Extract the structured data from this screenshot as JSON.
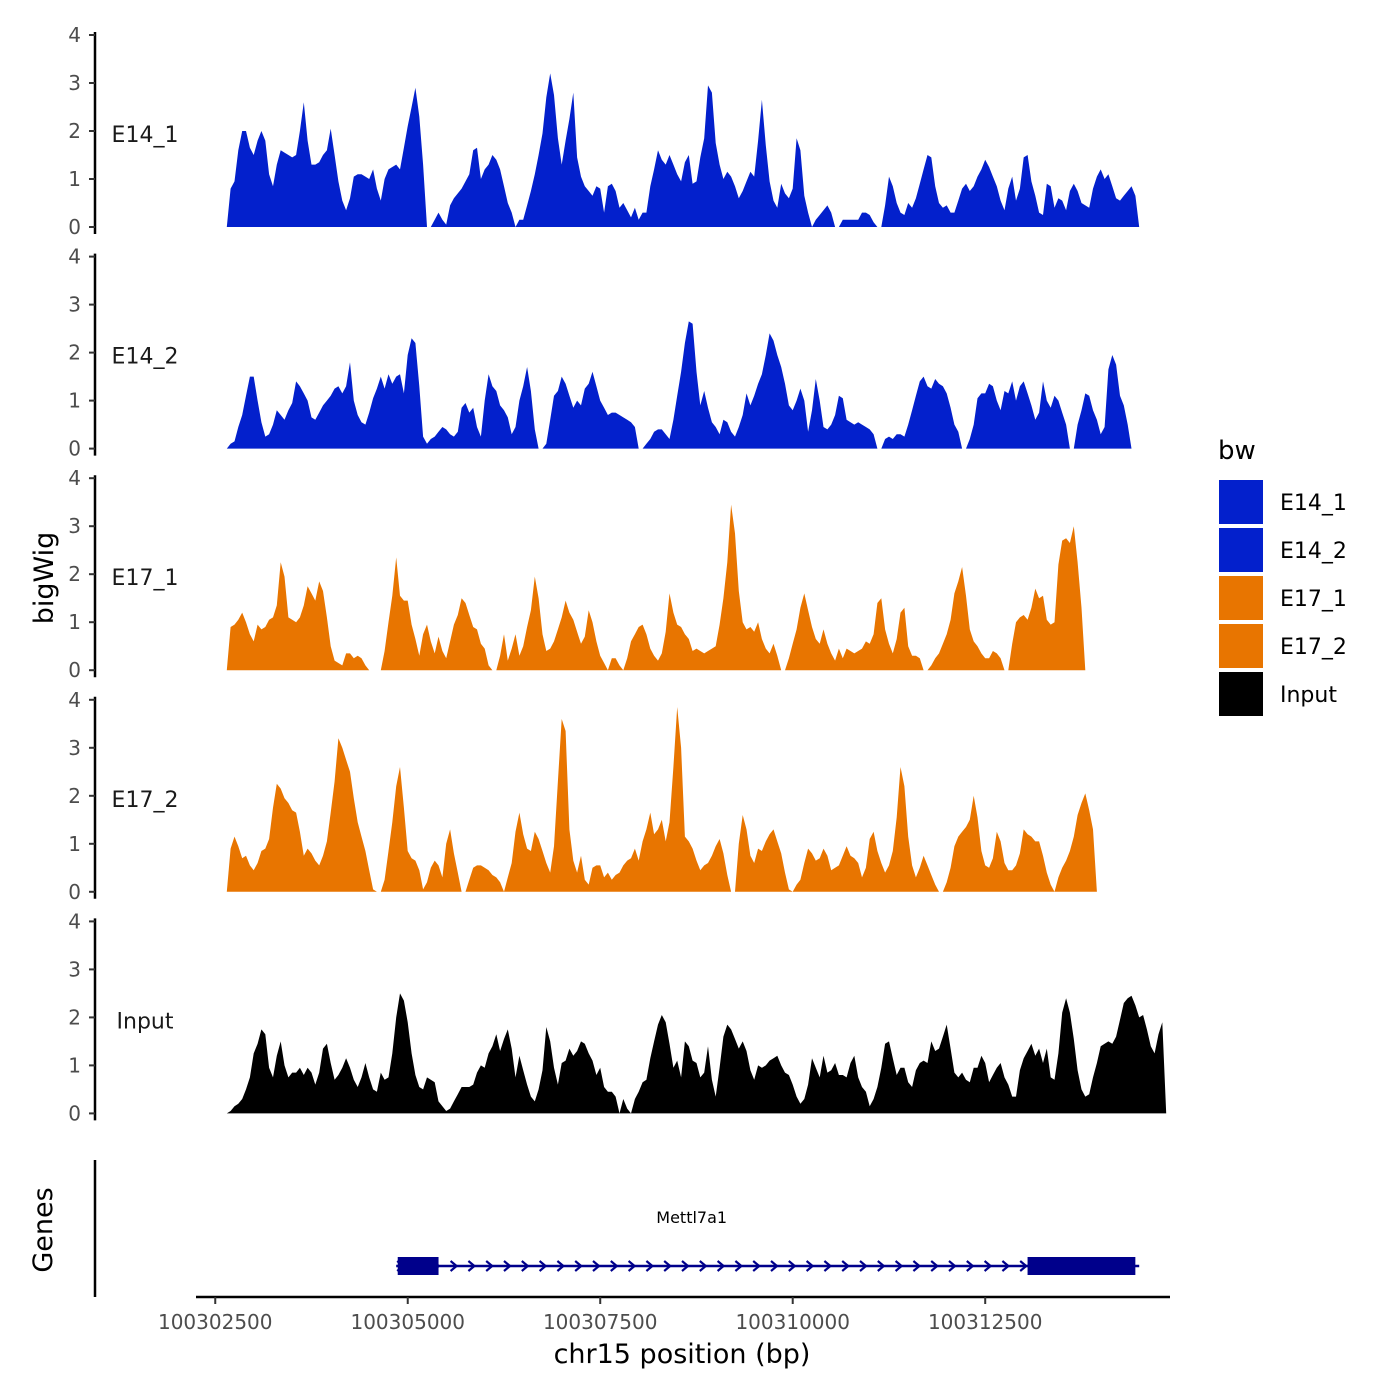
{
  "chart_data": {
    "type": "area",
    "ylabel": "bigWig",
    "xlabel": "chr15 position (bp)",
    "ylim": [
      0,
      4
    ],
    "y_ticks": [
      0,
      1,
      2,
      3,
      4
    ],
    "x_range": [
      100302250,
      100314900
    ],
    "x_ticks": [
      {
        "value": 100302500,
        "label": "100302500"
      },
      {
        "value": 100305000,
        "label": "100305000"
      },
      {
        "value": 100307500,
        "label": "100307500"
      },
      {
        "value": 100310000,
        "label": "100310000"
      },
      {
        "value": 100312500,
        "label": "100312500"
      }
    ],
    "data_start": 100302650,
    "data_step": 50,
    "legend": {
      "title": "bw",
      "position": "right"
    },
    "series": [
      {
        "name": "E14_1",
        "color": "#0320CC",
        "values": [
          0.0,
          0.8,
          0.95,
          1.6,
          2.0,
          2.0,
          1.65,
          1.5,
          1.8,
          2.0,
          1.8,
          1.1,
          0.85,
          1.3,
          1.6,
          1.55,
          1.5,
          1.45,
          1.5,
          2.0,
          2.6,
          1.8,
          1.3,
          1.3,
          1.35,
          1.5,
          1.6,
          2.05,
          1.5,
          0.95,
          0.55,
          0.35,
          0.6,
          1.05,
          1.1,
          1.1,
          1.05,
          1.0,
          1.2,
          0.8,
          0.55,
          1.0,
          1.2,
          1.25,
          1.3,
          1.2,
          1.65,
          2.1,
          2.5,
          2.9,
          2.3,
          1.3,
          0.0,
          0.0,
          0.15,
          0.3,
          0.15,
          0.05,
          0.45,
          0.6,
          0.7,
          0.8,
          0.95,
          1.1,
          1.6,
          1.65,
          1.0,
          1.2,
          1.3,
          1.5,
          1.4,
          1.2,
          0.85,
          0.5,
          0.3,
          0.0,
          0.15,
          0.15,
          0.45,
          0.75,
          1.1,
          1.5,
          1.95,
          2.7,
          3.2,
          2.75,
          1.85,
          1.3,
          1.8,
          2.25,
          2.8,
          1.45,
          1.05,
          0.85,
          0.75,
          0.65,
          0.85,
          0.8,
          0.3,
          0.85,
          0.9,
          0.75,
          0.4,
          0.5,
          0.35,
          0.2,
          0.4,
          0.15,
          0.3,
          0.3,
          0.85,
          1.2,
          1.6,
          1.4,
          1.3,
          1.5,
          1.3,
          1.1,
          0.95,
          1.35,
          1.5,
          0.9,
          0.95,
          1.45,
          1.85,
          2.95,
          2.8,
          1.75,
          1.3,
          1.0,
          1.15,
          1.05,
          0.85,
          0.6,
          0.75,
          0.95,
          1.15,
          1.05,
          1.8,
          2.65,
          1.7,
          0.95,
          0.55,
          0.4,
          0.9,
          0.7,
          0.6,
          0.8,
          1.85,
          1.6,
          0.65,
          0.3,
          0.0,
          0.15,
          0.25,
          0.35,
          0.45,
          0.3,
          0.0,
          0.0,
          0.15,
          0.15,
          0.15,
          0.15,
          0.15,
          0.3,
          0.3,
          0.25,
          0.1,
          0.0,
          0.0,
          0.45,
          1.05,
          0.85,
          0.5,
          0.3,
          0.25,
          0.5,
          0.4,
          0.6,
          0.9,
          1.2,
          1.5,
          1.45,
          0.85,
          0.5,
          0.4,
          0.45,
          0.3,
          0.3,
          0.55,
          0.8,
          0.9,
          0.75,
          0.85,
          1.05,
          1.2,
          1.4,
          1.25,
          1.05,
          0.85,
          0.55,
          0.35,
          0.8,
          1.05,
          0.55,
          0.8,
          1.45,
          1.5,
          0.95,
          0.65,
          0.3,
          0.25,
          0.9,
          0.85,
          0.4,
          0.6,
          0.55,
          0.35,
          0.75,
          0.9,
          0.75,
          0.5,
          0.45,
          0.4,
          0.8,
          1.05,
          1.2,
          1.0,
          1.1,
          0.85,
          0.6,
          0.55,
          0.65,
          0.75,
          0.85,
          0.65,
          0.0
        ]
      },
      {
        "name": "E14_2",
        "color": "#0320CC",
        "values": [
          0.0,
          0.1,
          0.15,
          0.45,
          0.7,
          1.1,
          1.5,
          1.5,
          1.0,
          0.55,
          0.25,
          0.3,
          0.5,
          0.8,
          0.7,
          0.6,
          0.8,
          0.95,
          1.4,
          1.3,
          1.15,
          1.0,
          0.65,
          0.6,
          0.75,
          0.9,
          1.0,
          1.1,
          1.25,
          1.3,
          1.15,
          1.3,
          1.8,
          1.0,
          0.7,
          0.55,
          0.5,
          0.75,
          1.05,
          1.25,
          1.5,
          1.25,
          1.55,
          1.35,
          1.5,
          1.55,
          1.15,
          1.95,
          2.3,
          2.2,
          1.3,
          0.25,
          0.1,
          0.2,
          0.25,
          0.35,
          0.45,
          0.4,
          0.3,
          0.25,
          0.35,
          0.85,
          0.95,
          0.75,
          0.85,
          0.45,
          0.25,
          1.0,
          1.55,
          1.3,
          1.2,
          0.9,
          0.8,
          0.65,
          0.3,
          0.45,
          1.0,
          1.3,
          1.7,
          1.2,
          0.4,
          0.0,
          0.0,
          0.1,
          0.6,
          1.1,
          1.2,
          1.5,
          1.35,
          1.1,
          0.85,
          1.0,
          0.9,
          1.25,
          1.35,
          1.6,
          1.3,
          1.0,
          0.85,
          0.7,
          0.75,
          0.75,
          0.7,
          0.65,
          0.6,
          0.55,
          0.45,
          0.0,
          0.0,
          0.1,
          0.2,
          0.35,
          0.4,
          0.4,
          0.3,
          0.2,
          0.6,
          1.1,
          1.6,
          2.2,
          2.65,
          2.6,
          1.6,
          0.9,
          1.2,
          0.85,
          0.55,
          0.45,
          0.3,
          0.6,
          0.55,
          0.35,
          0.25,
          0.45,
          0.7,
          1.15,
          0.9,
          1.1,
          1.35,
          1.55,
          1.95,
          2.4,
          2.25,
          1.95,
          1.7,
          1.35,
          0.9,
          0.8,
          1.0,
          1.25,
          1.0,
          0.35,
          0.8,
          1.45,
          1.0,
          0.45,
          0.4,
          0.5,
          0.7,
          1.1,
          1.05,
          0.6,
          0.55,
          0.5,
          0.55,
          0.5,
          0.45,
          0.4,
          0.3,
          0.0,
          0.0,
          0.2,
          0.25,
          0.2,
          0.3,
          0.3,
          0.25,
          0.5,
          0.8,
          1.1,
          1.4,
          1.5,
          1.3,
          1.25,
          1.45,
          1.35,
          1.3,
          1.15,
          0.85,
          0.5,
          0.35,
          0.0,
          0.0,
          0.2,
          0.5,
          1.05,
          1.15,
          1.15,
          1.35,
          1.3,
          1.0,
          0.8,
          1.2,
          1.15,
          1.4,
          1.0,
          1.3,
          1.4,
          1.15,
          0.9,
          0.6,
          0.75,
          1.4,
          1.0,
          0.85,
          1.1,
          1.0,
          0.75,
          0.5,
          0.0,
          0.0,
          0.5,
          0.8,
          1.15,
          1.1,
          0.8,
          0.6,
          0.3,
          0.45,
          1.65,
          1.95,
          1.75,
          1.1,
          0.9,
          0.5,
          0.0
        ]
      },
      {
        "name": "E17_1",
        "color": "#E87500",
        "values": [
          0.0,
          0.9,
          0.95,
          1.05,
          1.2,
          1.0,
          0.75,
          0.6,
          0.95,
          0.85,
          0.9,
          1.05,
          1.1,
          1.35,
          2.25,
          1.95,
          1.1,
          1.05,
          1.0,
          1.1,
          1.35,
          1.75,
          1.6,
          1.45,
          1.85,
          1.65,
          1.1,
          0.5,
          0.2,
          0.15,
          0.1,
          0.35,
          0.35,
          0.25,
          0.3,
          0.25,
          0.1,
          0.0,
          0.0,
          0.0,
          0.0,
          0.4,
          1.0,
          1.55,
          2.35,
          1.55,
          1.45,
          1.45,
          0.95,
          0.65,
          0.3,
          0.75,
          0.95,
          0.6,
          0.35,
          0.7,
          0.4,
          0.25,
          0.6,
          0.95,
          1.15,
          1.5,
          1.4,
          1.15,
          0.9,
          0.85,
          0.55,
          0.45,
          0.1,
          0.0,
          0.0,
          0.3,
          0.75,
          0.2,
          0.45,
          0.75,
          0.3,
          0.5,
          0.9,
          1.25,
          1.95,
          1.5,
          0.75,
          0.4,
          0.45,
          0.6,
          0.85,
          1.1,
          1.45,
          1.2,
          1.05,
          0.8,
          0.55,
          0.7,
          1.25,
          1.0,
          0.6,
          0.3,
          0.15,
          0.0,
          0.25,
          0.25,
          0.1,
          0.0,
          0.25,
          0.6,
          0.75,
          0.9,
          0.95,
          0.75,
          0.45,
          0.3,
          0.2,
          0.35,
          0.8,
          1.6,
          1.2,
          0.95,
          0.9,
          0.75,
          0.65,
          0.4,
          0.45,
          0.4,
          0.35,
          0.4,
          0.45,
          0.5,
          0.95,
          1.5,
          2.25,
          3.45,
          2.85,
          1.65,
          1.0,
          0.85,
          0.9,
          0.8,
          1.0,
          0.65,
          0.45,
          0.35,
          0.55,
          0.3,
          0.0,
          0.0,
          0.25,
          0.55,
          0.85,
          1.3,
          1.6,
          1.25,
          0.9,
          0.65,
          0.55,
          0.85,
          0.55,
          0.35,
          0.2,
          0.45,
          0.25,
          0.45,
          0.4,
          0.35,
          0.4,
          0.45,
          0.6,
          0.55,
          0.75,
          1.4,
          1.5,
          0.85,
          0.55,
          0.35,
          0.65,
          1.2,
          1.3,
          0.5,
          0.3,
          0.3,
          0.25,
          0.0,
          0.0,
          0.1,
          0.25,
          0.35,
          0.55,
          0.75,
          1.05,
          1.6,
          1.85,
          2.15,
          1.55,
          0.85,
          0.6,
          0.5,
          0.35,
          0.25,
          0.25,
          0.4,
          0.35,
          0.25,
          0.0,
          0.0,
          0.55,
          1.0,
          1.1,
          1.15,
          1.05,
          1.3,
          1.7,
          1.5,
          1.55,
          1.05,
          0.95,
          1.0,
          2.2,
          2.7,
          2.75,
          2.65,
          3.0,
          2.25,
          1.3,
          0.0
        ]
      },
      {
        "name": "E17_2",
        "color": "#E87500",
        "values": [
          0.0,
          0.9,
          1.15,
          0.95,
          0.7,
          0.75,
          0.55,
          0.45,
          0.6,
          0.85,
          0.9,
          1.1,
          1.75,
          2.25,
          2.15,
          1.95,
          1.85,
          1.7,
          1.65,
          1.25,
          0.75,
          0.9,
          0.8,
          0.65,
          0.55,
          0.75,
          1.05,
          1.65,
          2.3,
          3.2,
          3.0,
          2.75,
          2.5,
          1.95,
          1.45,
          1.15,
          0.85,
          0.45,
          0.05,
          0.0,
          0.0,
          0.25,
          0.85,
          1.45,
          2.2,
          2.6,
          1.75,
          0.85,
          0.7,
          0.65,
          0.45,
          0.05,
          0.2,
          0.5,
          0.65,
          0.55,
          0.3,
          1.0,
          1.3,
          0.8,
          0.4,
          0.0,
          0.0,
          0.25,
          0.5,
          0.55,
          0.55,
          0.5,
          0.45,
          0.35,
          0.3,
          0.2,
          0.0,
          0.3,
          0.6,
          1.25,
          1.65,
          1.2,
          0.9,
          0.85,
          1.25,
          1.1,
          0.85,
          0.6,
          0.4,
          0.95,
          2.3,
          3.6,
          3.35,
          1.3,
          0.65,
          0.4,
          0.75,
          0.25,
          0.15,
          0.5,
          0.55,
          0.55,
          0.3,
          0.4,
          0.25,
          0.35,
          0.4,
          0.55,
          0.65,
          0.7,
          0.9,
          0.65,
          1.05,
          1.3,
          1.65,
          1.2,
          1.3,
          1.5,
          1.05,
          1.45,
          2.6,
          3.85,
          3.0,
          1.15,
          1.05,
          0.9,
          0.65,
          0.45,
          0.55,
          0.6,
          0.75,
          0.95,
          1.1,
          0.8,
          0.35,
          0.0,
          0.0,
          1.0,
          1.6,
          1.3,
          0.75,
          0.6,
          0.9,
          0.85,
          1.05,
          1.2,
          1.3,
          1.05,
          0.8,
          0.4,
          0.05,
          0.0,
          0.15,
          0.25,
          0.6,
          0.9,
          0.8,
          0.65,
          0.7,
          0.9,
          0.75,
          0.45,
          0.5,
          0.55,
          0.75,
          0.95,
          0.75,
          0.7,
          0.6,
          0.3,
          0.5,
          1.1,
          1.25,
          0.85,
          0.6,
          0.4,
          0.55,
          0.85,
          1.55,
          2.6,
          2.2,
          1.15,
          0.55,
          0.3,
          0.5,
          0.75,
          0.55,
          0.35,
          0.15,
          0.0,
          0.0,
          0.2,
          0.5,
          0.95,
          1.15,
          1.25,
          1.35,
          1.5,
          2.0,
          1.55,
          0.85,
          0.55,
          0.5,
          0.7,
          1.25,
          1.05,
          0.6,
          0.45,
          0.45,
          0.55,
          0.8,
          1.3,
          1.2,
          1.15,
          1.05,
          1.05,
          0.75,
          0.4,
          0.15,
          0.0,
          0.3,
          0.5,
          0.65,
          0.85,
          1.15,
          1.6,
          1.85,
          2.05,
          1.7,
          1.3,
          0.0
        ]
      },
      {
        "name": "Input",
        "color": "#000000",
        "values": [
          0.0,
          0.05,
          0.15,
          0.2,
          0.3,
          0.5,
          0.75,
          1.25,
          1.45,
          1.75,
          1.65,
          0.95,
          0.75,
          1.2,
          1.5,
          1.0,
          0.75,
          0.85,
          0.85,
          0.95,
          0.8,
          0.95,
          0.85,
          0.6,
          0.85,
          1.35,
          1.45,
          1.05,
          0.7,
          0.8,
          0.95,
          1.15,
          0.95,
          0.7,
          0.55,
          0.75,
          1.05,
          0.75,
          0.5,
          0.45,
          0.85,
          0.7,
          0.75,
          1.25,
          2.0,
          2.5,
          2.35,
          1.9,
          1.25,
          0.8,
          0.55,
          0.5,
          0.75,
          0.7,
          0.65,
          0.25,
          0.15,
          0.05,
          0.1,
          0.25,
          0.4,
          0.55,
          0.55,
          0.55,
          0.6,
          0.85,
          1.0,
          0.95,
          1.25,
          1.4,
          1.65,
          1.3,
          1.55,
          1.75,
          1.35,
          0.75,
          1.2,
          0.9,
          0.6,
          0.35,
          0.25,
          0.5,
          0.9,
          1.8,
          1.5,
          0.95,
          0.6,
          1.05,
          1.1,
          1.35,
          1.2,
          1.3,
          1.5,
          1.45,
          1.25,
          1.1,
          0.8,
          0.95,
          0.55,
          0.45,
          0.45,
          0.35,
          0.0,
          0.3,
          0.1,
          0.0,
          0.3,
          0.45,
          0.65,
          0.7,
          1.15,
          1.5,
          1.85,
          2.05,
          1.9,
          1.45,
          0.95,
          1.1,
          0.75,
          1.5,
          1.4,
          1.1,
          1.05,
          0.75,
          0.85,
          1.4,
          0.7,
          0.35,
          0.95,
          1.6,
          1.85,
          1.75,
          1.55,
          1.35,
          1.5,
          1.3,
          0.9,
          0.7,
          1.0,
          0.95,
          1.0,
          1.1,
          1.15,
          1.2,
          1.0,
          0.85,
          0.8,
          0.6,
          0.35,
          0.2,
          0.3,
          0.6,
          1.15,
          0.95,
          0.75,
          1.2,
          0.85,
          0.9,
          1.05,
          0.8,
          0.8,
          0.75,
          1.05,
          1.2,
          0.75,
          0.55,
          0.45,
          0.15,
          0.3,
          0.55,
          0.95,
          1.45,
          1.5,
          1.15,
          0.8,
          0.95,
          0.95,
          0.65,
          0.55,
          0.9,
          1.05,
          1.1,
          1.05,
          1.5,
          1.3,
          1.35,
          1.6,
          1.85,
          1.35,
          0.85,
          0.75,
          0.85,
          0.7,
          0.65,
          0.95,
          0.95,
          1.2,
          1.05,
          0.65,
          0.8,
          0.95,
          1.05,
          0.75,
          0.6,
          0.35,
          0.35,
          0.9,
          1.15,
          1.3,
          1.45,
          1.2,
          1.35,
          1.05,
          1.35,
          0.75,
          0.7,
          1.25,
          2.1,
          2.4,
          2.1,
          1.55,
          0.9,
          0.5,
          0.35,
          0.4,
          0.75,
          1.05,
          1.4,
          1.45,
          1.5,
          1.45,
          1.6,
          1.95,
          2.3,
          2.4,
          2.45,
          2.25,
          2.0,
          2.05,
          1.75,
          1.4,
          1.25,
          1.65,
          1.9,
          0.0
        ]
      }
    ],
    "genes_panel": {
      "label": "Genes",
      "gene": {
        "name": "Mettl7a1",
        "color": "#00008B",
        "start": 100304850,
        "end": 100314500,
        "strand": "+",
        "exons": [
          {
            "start": 100304870,
            "end": 100305400
          },
          {
            "start": 100313050,
            "end": 100314450
          }
        ]
      }
    }
  }
}
